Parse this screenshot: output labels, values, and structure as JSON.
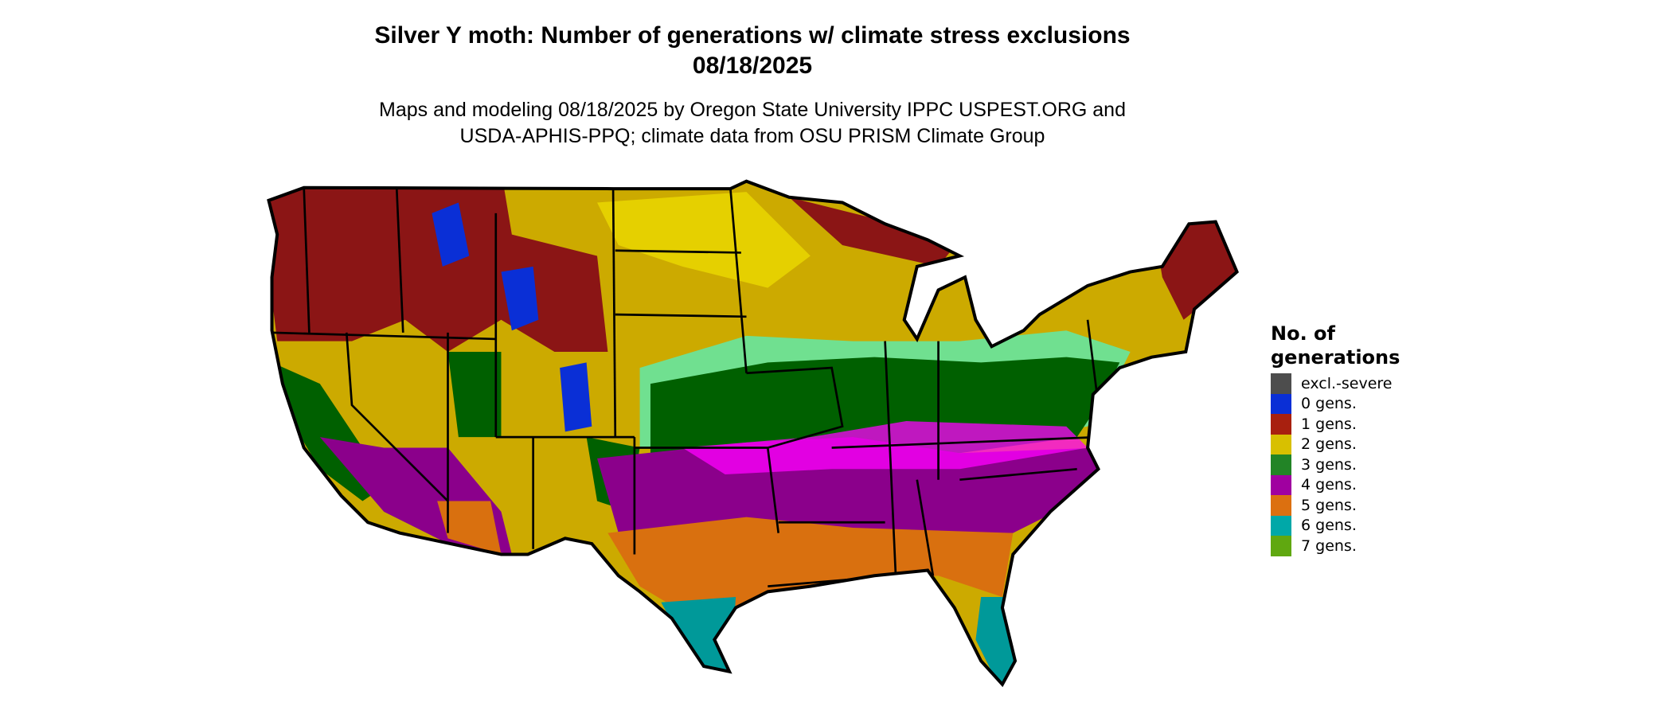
{
  "title_line1": "Silver Y moth: Number of generations w/ climate stress exclusions",
  "title_line2": "08/18/2025",
  "subtitle_line1": "Maps and modeling 08/18/2025 by Oregon State University IPPC USPEST.ORG and",
  "subtitle_line2": "USDA-APHIS-PPQ; climate data from OSU PRISM Climate Group",
  "legend": {
    "title_line1": "No. of",
    "title_line2": "generations",
    "items": [
      {
        "label": "excl.-severe",
        "color": "#4d4d4d"
      },
      {
        "label": "0 gens.",
        "color": "#0a2fd6"
      },
      {
        "label": "1 gens.",
        "color": "#a8200f"
      },
      {
        "label": "2 gens.",
        "color": "#d8c000"
      },
      {
        "label": "3 gens.",
        "color": "#228426"
      },
      {
        "label": "4 gens.",
        "color": "#a000a0"
      },
      {
        "label": "5 gens.",
        "color": "#dc7010"
      },
      {
        "label": "6 gens.",
        "color": "#00a8a8"
      },
      {
        "label": "7 gens.",
        "color": "#60a810"
      }
    ]
  },
  "map_colors": {
    "one_gen": "#8b1515",
    "two_gen": "#ccaa00",
    "two_gen_light": "#f0e000",
    "three_gen": "#006000",
    "three_gen_light": "#70e090",
    "four_gen": "#8b008b",
    "four_gen_light": "#ff00ff",
    "five_gen": "#d9700f",
    "six_gen": "#009999",
    "zero_gen": "#0a2fd6"
  }
}
